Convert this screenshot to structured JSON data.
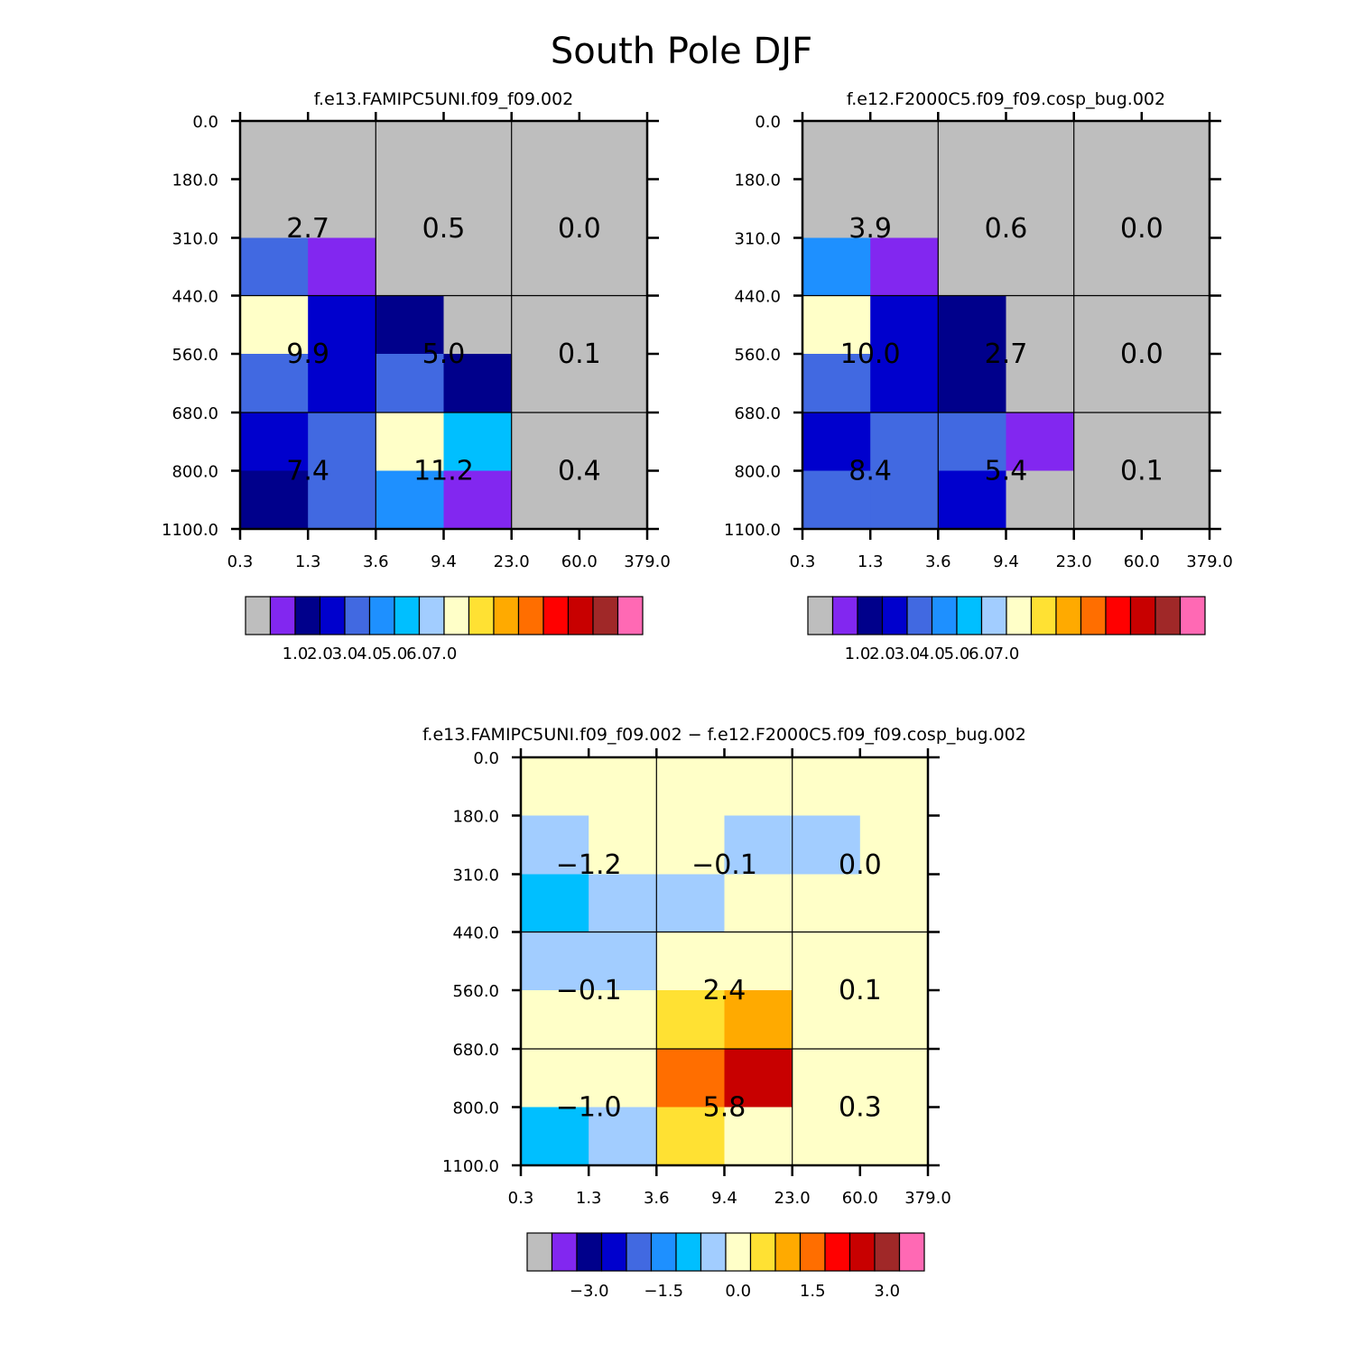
{
  "figure_title": "South Pole DJF",
  "palette": [
    "#bebebe",
    "#8227f0",
    "#00008b",
    "#0000cd",
    "#4169e1",
    "#1e90ff",
    "#00bfff",
    "#a2cdff",
    "#ffffc8",
    "#ffe133",
    "#ffaa00",
    "#ff6e00",
    "#ff0000",
    "#c80000",
    "#a02828",
    "#ff69b4"
  ],
  "chart_data": [
    {
      "type": "heatmap",
      "title": "f.e13.FAMIPC5UNI.f09_f09.002",
      "x_tick_labels": [
        "0.3",
        "1.3",
        "3.6",
        "9.4",
        "23.0",
        "60.0",
        "379.0"
      ],
      "y_tick_labels": [
        "0.0",
        "180.0",
        "310.0",
        "440.0",
        "560.0",
        "680.0",
        "800.0",
        "1100.0"
      ],
      "cells": [
        [
          0,
          0,
          0,
          0,
          0,
          0
        ],
        [
          0,
          0,
          0,
          0,
          0,
          0
        ],
        [
          4,
          1,
          0,
          0,
          0,
          0
        ],
        [
          8,
          3,
          2,
          0,
          0,
          0
        ],
        [
          4,
          3,
          4,
          2,
          0,
          0
        ],
        [
          3,
          4,
          8,
          6,
          0,
          0
        ],
        [
          2,
          4,
          5,
          1,
          0,
          0
        ]
      ],
      "box_values": [
        [
          "2.7",
          "0.5",
          "0.0"
        ],
        [
          "9.9",
          "5.0",
          "0.1"
        ],
        [
          "7.4",
          "11.2",
          "0.4"
        ]
      ],
      "colorbar_labels": [
        "1.0",
        "2.0",
        "3.0",
        "4.0",
        "5.0",
        "6.0",
        "7.0"
      ]
    },
    {
      "type": "heatmap",
      "title": "f.e12.F2000C5.f09_f09.cosp_bug.002",
      "x_tick_labels": [
        "0.3",
        "1.3",
        "3.6",
        "9.4",
        "23.0",
        "60.0",
        "379.0"
      ],
      "y_tick_labels": [
        "0.0",
        "180.0",
        "310.0",
        "440.0",
        "560.0",
        "680.0",
        "800.0",
        "1100.0"
      ],
      "cells": [
        [
          0,
          0,
          0,
          0,
          0,
          0
        ],
        [
          0,
          0,
          0,
          0,
          0,
          0
        ],
        [
          5,
          1,
          0,
          0,
          0,
          0
        ],
        [
          8,
          3,
          2,
          0,
          0,
          0
        ],
        [
          4,
          3,
          2,
          0,
          0,
          0
        ],
        [
          3,
          4,
          4,
          1,
          0,
          0
        ],
        [
          4,
          4,
          3,
          0,
          0,
          0
        ]
      ],
      "box_values": [
        [
          "3.9",
          "0.6",
          "0.0"
        ],
        [
          "10.0",
          "2.7",
          "0.0"
        ],
        [
          "8.4",
          "5.4",
          "0.1"
        ]
      ],
      "colorbar_labels": [
        "1.0",
        "2.0",
        "3.0",
        "4.0",
        "5.0",
        "6.0",
        "7.0"
      ]
    },
    {
      "type": "heatmap",
      "title": "f.e13.FAMIPC5UNI.f09_f09.002 − f.e12.F2000C5.f09_f09.cosp_bug.002",
      "x_tick_labels": [
        "0.3",
        "1.3",
        "3.6",
        "9.4",
        "23.0",
        "60.0",
        "379.0"
      ],
      "y_tick_labels": [
        "0.0",
        "180.0",
        "310.0",
        "440.0",
        "560.0",
        "680.0",
        "800.0",
        "1100.0"
      ],
      "cells": [
        [
          8,
          8,
          8,
          8,
          8,
          8
        ],
        [
          7,
          8,
          8,
          7,
          7,
          8
        ],
        [
          6,
          7,
          7,
          8,
          8,
          8
        ],
        [
          7,
          7,
          8,
          8,
          8,
          8
        ],
        [
          8,
          8,
          9,
          10,
          8,
          8
        ],
        [
          8,
          8,
          11,
          13,
          8,
          8
        ],
        [
          6,
          7,
          9,
          8,
          8,
          8
        ]
      ],
      "box_values": [
        [
          "−1.2",
          "−0.1",
          "0.0"
        ],
        [
          "−0.1",
          "2.4",
          "0.1"
        ],
        [
          "−1.0",
          "5.8",
          "0.3"
        ]
      ],
      "colorbar_labels": [
        "−3.0",
        "−1.5",
        "0.0",
        "1.5",
        "3.0"
      ]
    }
  ]
}
